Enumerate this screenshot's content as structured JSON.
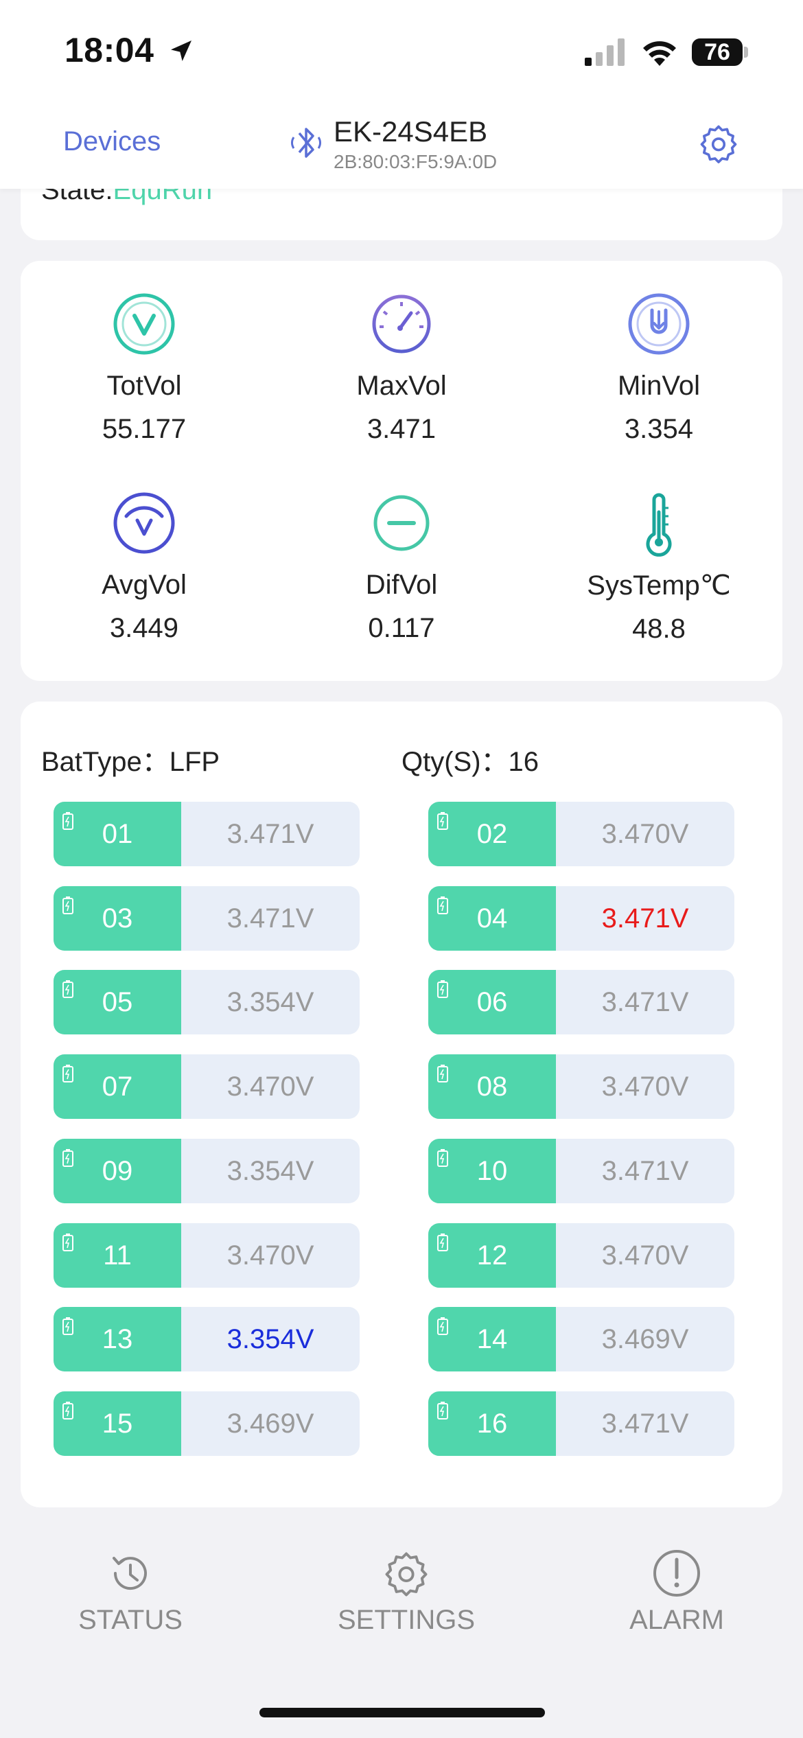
{
  "status_bar": {
    "time": "18:04",
    "battery": "76"
  },
  "header": {
    "back_label": "Devices",
    "device_name": "EK-24S4EB",
    "device_mac": "2B:80:03:F5:9A:0D"
  },
  "state": {
    "label": "State:",
    "value": "EquRun"
  },
  "stats": [
    {
      "label": "TotVol",
      "value": "55.177",
      "icon": "totvol-icon",
      "color": "#2ec4a8"
    },
    {
      "label": "MaxVol",
      "value": "3.471",
      "icon": "gauge-icon",
      "color": "#8a6fd6"
    },
    {
      "label": "MinVol",
      "value": "3.354",
      "icon": "minvol-icon",
      "color": "#6f82e6"
    },
    {
      "label": "AvgVol",
      "value": "3.449",
      "icon": "avgvol-icon",
      "color": "#4b4fd0"
    },
    {
      "label": "DifVol",
      "value": "0.117",
      "icon": "minus-circle-icon",
      "color": "#45c7a6"
    },
    {
      "label": "SysTemp℃",
      "value": "48.8",
      "icon": "thermometer-icon",
      "color": "#1aa59a"
    }
  ],
  "battery": {
    "type_label": "BatType：LFP",
    "qty_label": "Qty(S)：16",
    "cells": [
      {
        "id": "01",
        "voltage": "3.471V",
        "state": "normal"
      },
      {
        "id": "02",
        "voltage": "3.470V",
        "state": "normal"
      },
      {
        "id": "03",
        "voltage": "3.471V",
        "state": "normal"
      },
      {
        "id": "04",
        "voltage": "3.471V",
        "state": "max"
      },
      {
        "id": "05",
        "voltage": "3.354V",
        "state": "normal"
      },
      {
        "id": "06",
        "voltage": "3.471V",
        "state": "normal"
      },
      {
        "id": "07",
        "voltage": "3.470V",
        "state": "normal"
      },
      {
        "id": "08",
        "voltage": "3.470V",
        "state": "normal"
      },
      {
        "id": "09",
        "voltage": "3.354V",
        "state": "normal"
      },
      {
        "id": "10",
        "voltage": "3.471V",
        "state": "normal"
      },
      {
        "id": "11",
        "voltage": "3.470V",
        "state": "normal"
      },
      {
        "id": "12",
        "voltage": "3.470V",
        "state": "normal"
      },
      {
        "id": "13",
        "voltage": "3.354V",
        "state": "min"
      },
      {
        "id": "14",
        "voltage": "3.469V",
        "state": "normal"
      },
      {
        "id": "15",
        "voltage": "3.469V",
        "state": "normal"
      },
      {
        "id": "16",
        "voltage": "3.471V",
        "state": "normal"
      }
    ]
  },
  "tabs": [
    {
      "label": "STATUS",
      "icon": "history-icon"
    },
    {
      "label": "SETTINGS",
      "icon": "gear-icon"
    },
    {
      "label": "ALARM",
      "icon": "alert-icon"
    }
  ],
  "colors": {
    "accent": "#5a6fd6",
    "cell_green": "#50d6ac",
    "cell_bg": "#e8eef8",
    "volt_max": "#e81b1b",
    "volt_min": "#1a2ddb"
  }
}
